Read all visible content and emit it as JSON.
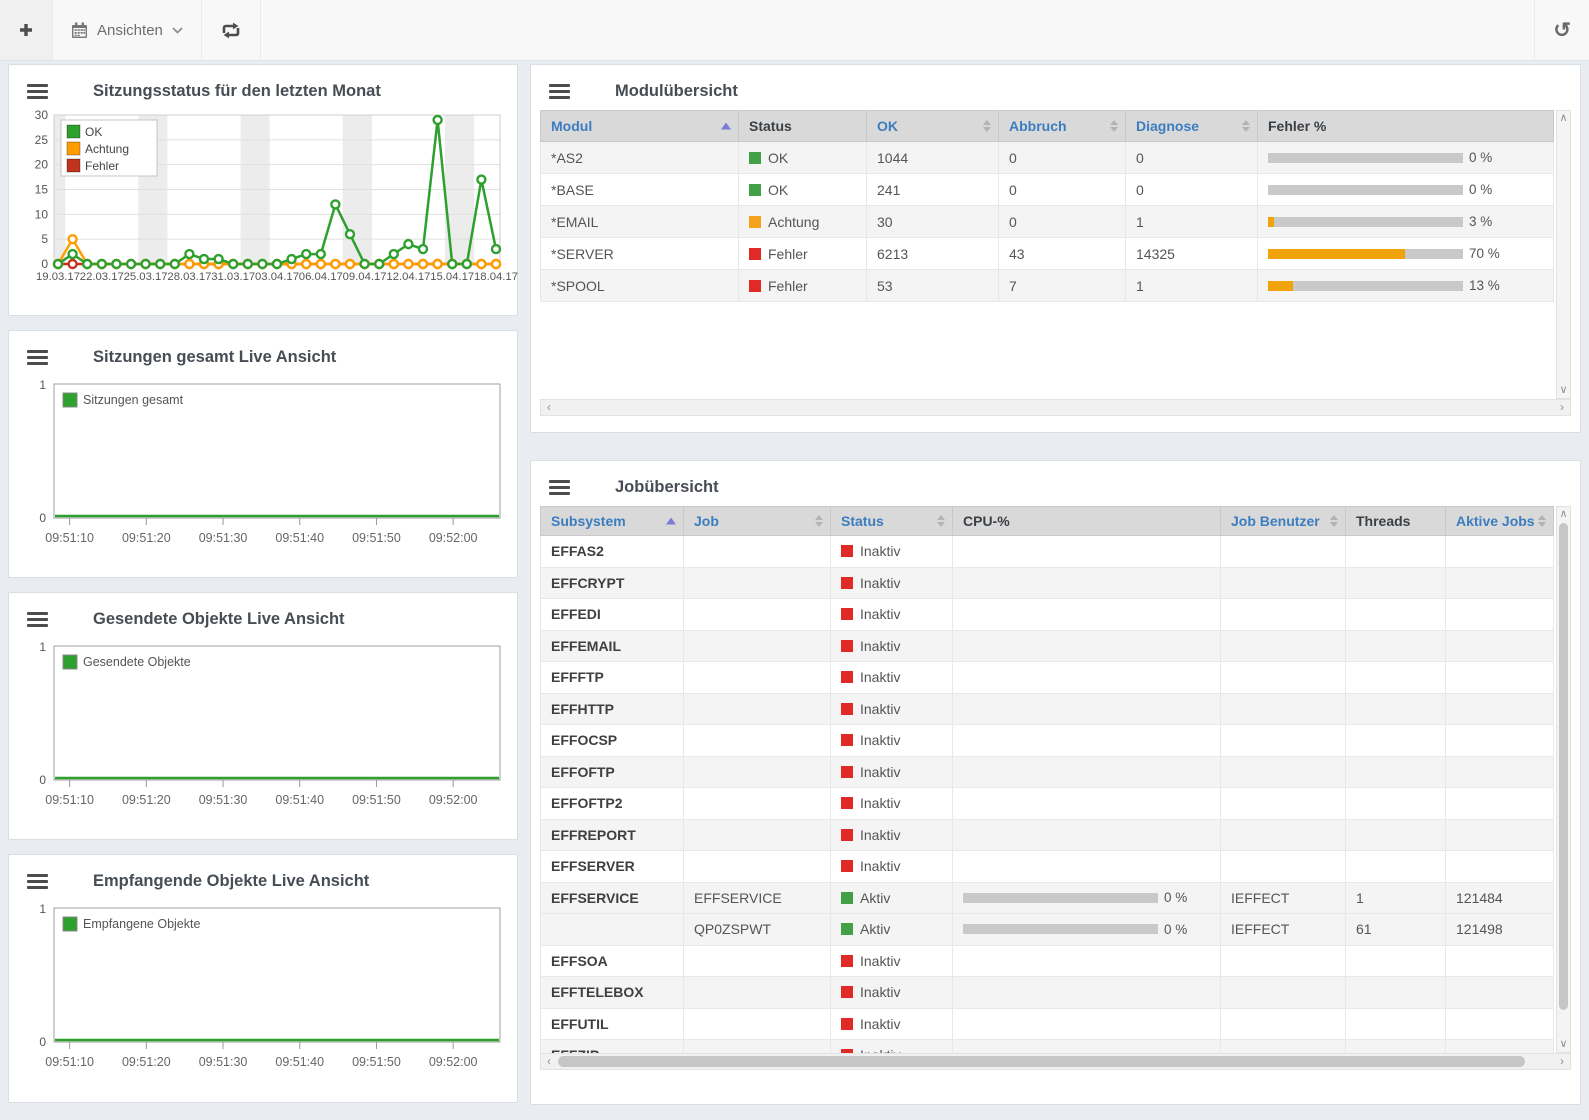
{
  "toolbar": {
    "views_label": "Ansichten",
    "icons": [
      "plus-icon",
      "calendar-icon",
      "chevron-down-icon",
      "repeat-icon",
      "history-icon"
    ]
  },
  "panels": {
    "month_chart": {
      "title": "Sitzungsstatus für den letzten Monat"
    },
    "sessions_live": {
      "title": "Sitzungen gesamt Live Ansicht"
    },
    "sent_live": {
      "title": "Gesendete Objekte Live Ansicht"
    },
    "received_live": {
      "title": "Empfangende Objekte Live Ansicht"
    },
    "module_overview": {
      "title": "Modulübersicht"
    },
    "job_overview": {
      "title": "Jobübersicht"
    }
  },
  "colors": {
    "status_green": "#43a047",
    "status_orange": "#f5a31a",
    "status_red": "#e12a26",
    "series_green": "#2da02d",
    "series_orange": "#ff9d00",
    "series_red": "#c0341d",
    "bar_fill": "#f0a30a",
    "bar_track": "#c9c9c9",
    "header_blue": "#3c7dc0",
    "sort_active": "#7b7bd8"
  },
  "chart_data": [
    {
      "type": "line",
      "title": "Sitzungsstatus für den letzten Monat",
      "categories": [
        "19.03.17",
        "20.03.17",
        "21.03.17",
        "22.03.17",
        "23.03.17",
        "24.03.17",
        "25.03.17",
        "26.03.17",
        "27.03.17",
        "28.03.17",
        "29.03.17",
        "30.03.17",
        "31.03.17",
        "01.04.17",
        "02.04.17",
        "03.04.17",
        "04.04.17",
        "05.04.17",
        "06.04.17",
        "07.04.17",
        "08.04.17",
        "09.04.17",
        "10.04.17",
        "11.04.17",
        "12.04.17",
        "13.04.17",
        "14.04.17",
        "15.04.17",
        "16.04.17",
        "17.04.17",
        "18.04.17"
      ],
      "x_tick_indices": [
        0,
        3,
        6,
        9,
        12,
        15,
        18,
        21,
        24,
        27,
        30
      ],
      "x_tick_labels": [
        "19.03.17",
        "22.03.17",
        "25.03.17",
        "28.03.17",
        "31.03.17",
        "03.04.17",
        "06.04.17",
        "09.04.17",
        "12.04.17",
        "15.04.17",
        "18.04.17"
      ],
      "series": [
        {
          "name": "Fehler",
          "color_key": "series_red",
          "values": [
            0,
            0,
            0,
            0,
            0,
            0,
            0,
            0,
            0,
            0,
            0,
            0,
            0,
            0,
            0,
            0,
            0,
            0,
            0,
            0,
            0,
            0,
            0,
            0,
            0,
            0,
            0,
            0,
            0,
            0,
            0
          ]
        },
        {
          "name": "Achtung",
          "color_key": "series_orange",
          "values": [
            0,
            5,
            0,
            0,
            0,
            0,
            0,
            0,
            0,
            0,
            0,
            0,
            0,
            0,
            0,
            0,
            0,
            0,
            0,
            0,
            0,
            0,
            0,
            0,
            0,
            0,
            0,
            0,
            0,
            0,
            0
          ]
        },
        {
          "name": "OK",
          "color_key": "series_green",
          "values": [
            0,
            2,
            0,
            0,
            0,
            0,
            0,
            0,
            0,
            2,
            1,
            1,
            0,
            0,
            0,
            0,
            1,
            2,
            2,
            12,
            6,
            0,
            0,
            2,
            4,
            3,
            29,
            0,
            0,
            17,
            3
          ]
        }
      ],
      "ylim": [
        0,
        30
      ],
      "yticks": [
        0,
        5,
        10,
        15,
        20,
        25,
        30
      ],
      "weekend_ranges": [
        [
          0,
          0
        ],
        [
          6,
          7
        ],
        [
          13,
          14
        ],
        [
          20,
          21
        ],
        [
          27,
          28
        ]
      ],
      "grid": true,
      "legend_position": "top-left"
    },
    {
      "type": "line",
      "title": "Sitzungen gesamt Live Ansicht",
      "series": [
        {
          "name": "Sitzungen gesamt",
          "color_key": "series_green",
          "values": [
            0,
            0,
            0,
            0,
            0,
            0
          ]
        }
      ],
      "x_tick_labels": [
        "09:51:10",
        "09:51:20",
        "09:51:30",
        "09:51:40",
        "09:51:50",
        "09:52:00"
      ],
      "ylim": [
        0,
        1
      ],
      "yticks": [
        0,
        1
      ],
      "legend_position": "top-left"
    },
    {
      "type": "line",
      "title": "Gesendete Objekte Live Ansicht",
      "series": [
        {
          "name": "Gesendete Objekte",
          "color_key": "series_green",
          "values": [
            0,
            0,
            0,
            0,
            0,
            0
          ]
        }
      ],
      "x_tick_labels": [
        "09:51:10",
        "09:51:20",
        "09:51:30",
        "09:51:40",
        "09:51:50",
        "09:52:00"
      ],
      "ylim": [
        0,
        1
      ],
      "yticks": [
        0,
        1
      ],
      "legend_position": "top-left"
    },
    {
      "type": "line",
      "title": "Empfangende Objekte Live Ansicht",
      "series": [
        {
          "name": "Empfangene Objekte",
          "color_key": "series_green",
          "values": [
            0,
            0,
            0,
            0,
            0,
            0
          ]
        }
      ],
      "x_tick_labels": [
        "09:51:10",
        "09:51:20",
        "09:51:30",
        "09:51:40",
        "09:51:50",
        "09:52:00"
      ],
      "ylim": [
        0,
        1
      ],
      "yticks": [
        0,
        1
      ],
      "legend_position": "top-left"
    }
  ],
  "module_table": {
    "columns": [
      {
        "key": "modul",
        "label": "Modul",
        "sortable": true,
        "sorted": "asc",
        "type": "text"
      },
      {
        "key": "status",
        "label": "Status",
        "sortable": false,
        "type": "status"
      },
      {
        "key": "ok",
        "label": "OK",
        "sortable": true,
        "type": "text"
      },
      {
        "key": "abbruch",
        "label": "Abbruch",
        "sortable": true,
        "type": "text"
      },
      {
        "key": "diagnose",
        "label": "Diagnose",
        "sortable": true,
        "type": "text"
      },
      {
        "key": "fehler_pct",
        "label": "Fehler %",
        "sortable": false,
        "type": "bar"
      }
    ],
    "rows": [
      {
        "modul": "*AS2",
        "status": {
          "label": "OK",
          "color": "green"
        },
        "ok": "1044",
        "abbruch": "0",
        "diagnose": "0",
        "fehler_pct": 0
      },
      {
        "modul": "*BASE",
        "status": {
          "label": "OK",
          "color": "green"
        },
        "ok": "241",
        "abbruch": "0",
        "diagnose": "0",
        "fehler_pct": 0
      },
      {
        "modul": "*EMAIL",
        "status": {
          "label": "Achtung",
          "color": "orange"
        },
        "ok": "30",
        "abbruch": "0",
        "diagnose": "1",
        "fehler_pct": 3
      },
      {
        "modul": "*SERVER",
        "status": {
          "label": "Fehler",
          "color": "red"
        },
        "ok": "6213",
        "abbruch": "43",
        "diagnose": "14325",
        "fehler_pct": 70
      },
      {
        "modul": "*SPOOL",
        "status": {
          "label": "Fehler",
          "color": "red"
        },
        "ok": "53",
        "abbruch": "7",
        "diagnose": "1",
        "fehler_pct": 13
      }
    ]
  },
  "job_table": {
    "columns": [
      {
        "key": "subsystem",
        "label": "Subsystem",
        "sortable": true,
        "sorted": "asc",
        "type": "bold"
      },
      {
        "key": "job",
        "label": "Job",
        "sortable": true,
        "type": "text"
      },
      {
        "key": "status",
        "label": "Status",
        "sortable": true,
        "type": "status"
      },
      {
        "key": "cpu",
        "label": "CPU-%",
        "sortable": false,
        "type": "bar"
      },
      {
        "key": "benutzer",
        "label": "Job Benutzer",
        "sortable": true,
        "type": "text"
      },
      {
        "key": "threads",
        "label": "Threads",
        "sortable": false,
        "type": "text"
      },
      {
        "key": "aktive",
        "label": "Aktive Jobs",
        "sortable": true,
        "type": "text"
      }
    ],
    "rows": [
      {
        "subsystem": "EFFAS2",
        "job": "",
        "status": {
          "label": "Inaktiv",
          "color": "red"
        },
        "cpu": null,
        "benutzer": "",
        "threads": "",
        "aktive": ""
      },
      {
        "subsystem": "EFFCRYPT",
        "job": "",
        "status": {
          "label": "Inaktiv",
          "color": "red"
        },
        "cpu": null,
        "benutzer": "",
        "threads": "",
        "aktive": ""
      },
      {
        "subsystem": "EFFEDI",
        "job": "",
        "status": {
          "label": "Inaktiv",
          "color": "red"
        },
        "cpu": null,
        "benutzer": "",
        "threads": "",
        "aktive": ""
      },
      {
        "subsystem": "EFFEMAIL",
        "job": "",
        "status": {
          "label": "Inaktiv",
          "color": "red"
        },
        "cpu": null,
        "benutzer": "",
        "threads": "",
        "aktive": ""
      },
      {
        "subsystem": "EFFFTP",
        "job": "",
        "status": {
          "label": "Inaktiv",
          "color": "red"
        },
        "cpu": null,
        "benutzer": "",
        "threads": "",
        "aktive": ""
      },
      {
        "subsystem": "EFFHTTP",
        "job": "",
        "status": {
          "label": "Inaktiv",
          "color": "red"
        },
        "cpu": null,
        "benutzer": "",
        "threads": "",
        "aktive": ""
      },
      {
        "subsystem": "EFFOCSP",
        "job": "",
        "status": {
          "label": "Inaktiv",
          "color": "red"
        },
        "cpu": null,
        "benutzer": "",
        "threads": "",
        "aktive": ""
      },
      {
        "subsystem": "EFFOFTP",
        "job": "",
        "status": {
          "label": "Inaktiv",
          "color": "red"
        },
        "cpu": null,
        "benutzer": "",
        "threads": "",
        "aktive": ""
      },
      {
        "subsystem": "EFFOFTP2",
        "job": "",
        "status": {
          "label": "Inaktiv",
          "color": "red"
        },
        "cpu": null,
        "benutzer": "",
        "threads": "",
        "aktive": ""
      },
      {
        "subsystem": "EFFREPORT",
        "job": "",
        "status": {
          "label": "Inaktiv",
          "color": "red"
        },
        "cpu": null,
        "benutzer": "",
        "threads": "",
        "aktive": ""
      },
      {
        "subsystem": "EFFSERVER",
        "job": "",
        "status": {
          "label": "Inaktiv",
          "color": "red"
        },
        "cpu": null,
        "benutzer": "",
        "threads": "",
        "aktive": ""
      },
      {
        "subsystem": "EFFSERVICE",
        "job": "EFFSERVICE",
        "status": {
          "label": "Aktiv",
          "color": "green"
        },
        "cpu": 0,
        "benutzer": "IEFFECT",
        "threads": "1",
        "aktive": "121484"
      },
      {
        "subsystem": "",
        "job": "QP0ZSPWT",
        "status": {
          "label": "Aktiv",
          "color": "green"
        },
        "cpu": 0,
        "benutzer": "IEFFECT",
        "threads": "61",
        "aktive": "121498"
      },
      {
        "subsystem": "EFFSOA",
        "job": "",
        "status": {
          "label": "Inaktiv",
          "color": "red"
        },
        "cpu": null,
        "benutzer": "",
        "threads": "",
        "aktive": ""
      },
      {
        "subsystem": "EFFTELEBOX",
        "job": "",
        "status": {
          "label": "Inaktiv",
          "color": "red"
        },
        "cpu": null,
        "benutzer": "",
        "threads": "",
        "aktive": ""
      },
      {
        "subsystem": "EFFUTIL",
        "job": "",
        "status": {
          "label": "Inaktiv",
          "color": "red"
        },
        "cpu": null,
        "benutzer": "",
        "threads": "",
        "aktive": ""
      },
      {
        "subsystem": "EFFZIP",
        "job": "",
        "status": {
          "label": "Inaktiv",
          "color": "red"
        },
        "cpu": null,
        "benutzer": "",
        "threads": "",
        "aktive": ""
      }
    ]
  }
}
